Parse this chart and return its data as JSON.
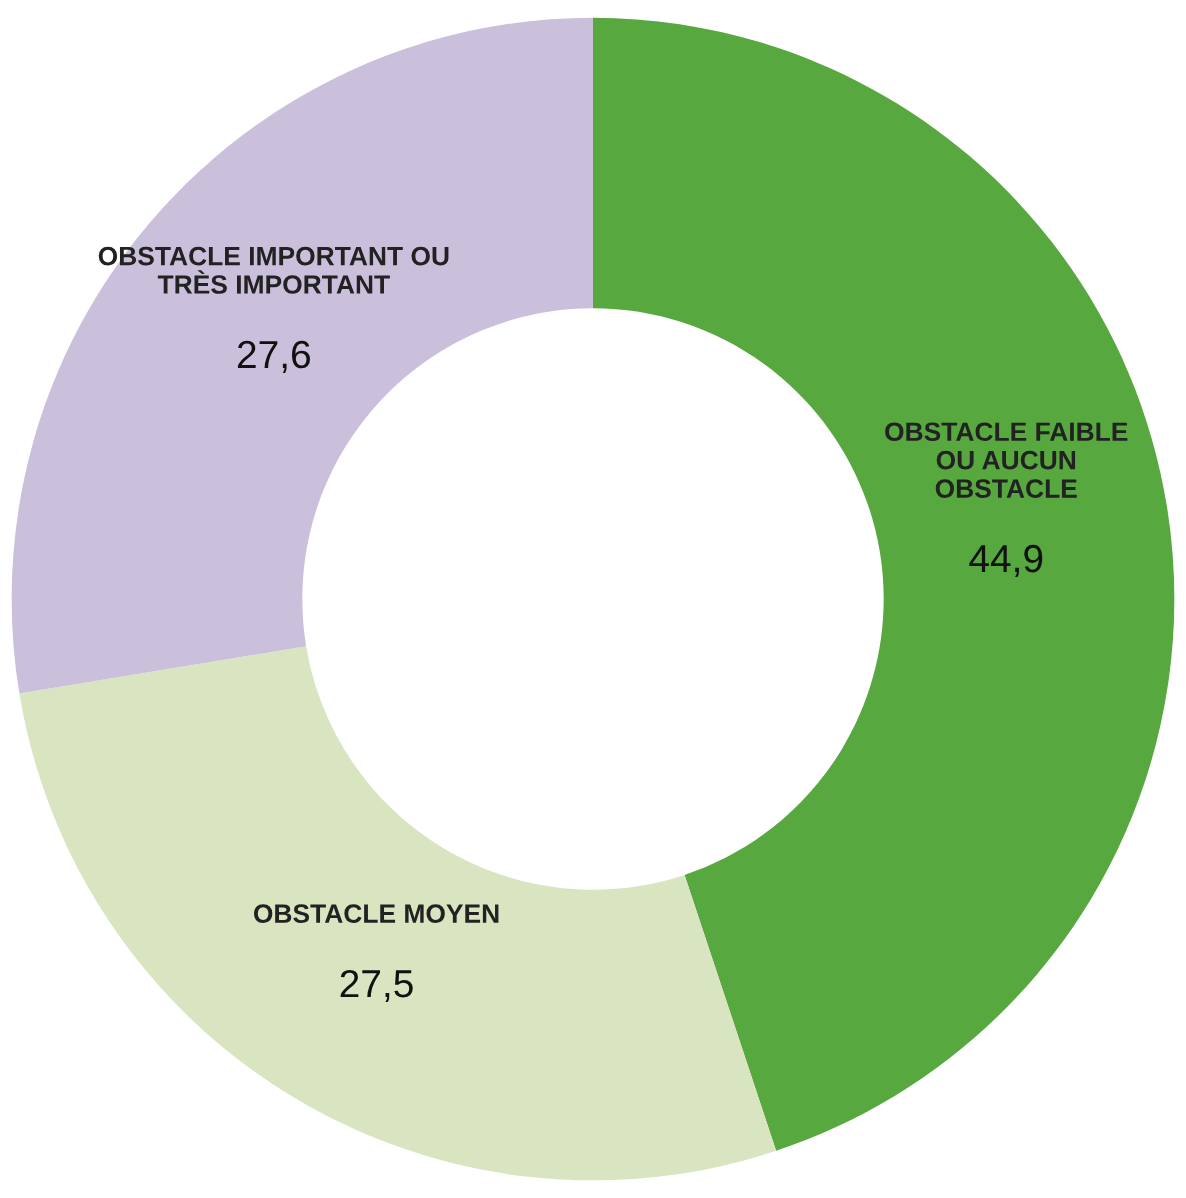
{
  "chart_data": {
    "type": "donut",
    "categories": [
      "OBSTACLE FAIBLE\nOU AUCUN\nOBSTACLE",
      "OBSTACLE MOYEN",
      "OBSTACLE IMPORTANT OU\nTRÈS IMPORTANT"
    ],
    "values": [
      44.9,
      27.5,
      27.6
    ],
    "value_labels": [
      "44,9",
      "27,5",
      "27,6"
    ],
    "colors": [
      "#56a83f",
      "#d9e4c0",
      "#cbc0dc"
    ],
    "legend": false
  }
}
